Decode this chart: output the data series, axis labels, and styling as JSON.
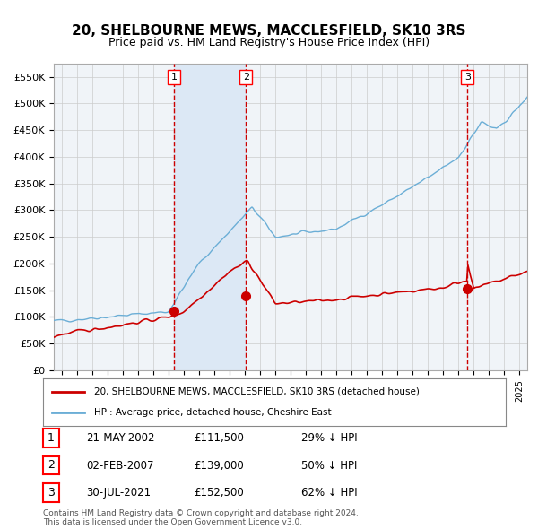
{
  "title": "20, SHELBOURNE MEWS, MACCLESFIELD, SK10 3RS",
  "subtitle": "Price paid vs. HM Land Registry's House Price Index (HPI)",
  "xlabel": "",
  "ylabel": "",
  "ylim": [
    0,
    575000
  ],
  "yticks": [
    0,
    50000,
    100000,
    150000,
    200000,
    250000,
    300000,
    350000,
    400000,
    450000,
    500000,
    550000
  ],
  "ytick_labels": [
    "£0",
    "£50K",
    "£100K",
    "£150K",
    "£200K",
    "£250K",
    "£300K",
    "£350K",
    "£400K",
    "£450K",
    "£500K",
    "£550K"
  ],
  "hpi_color": "#6baed6",
  "price_color": "#cc0000",
  "sale_dot_color": "#cc0000",
  "vline_color": "#cc0000",
  "grid_color": "#cccccc",
  "bg_color": "#ffffff",
  "plot_bg_color": "#f0f4f8",
  "shade_color": "#dce8f5",
  "legend_box_color": "#ffffff",
  "legend_border_color": "#888888",
  "transactions": [
    {
      "label": "1",
      "date_x": 2002.38,
      "price": 111500,
      "date_str": "21-MAY-2002",
      "price_str": "£111,500",
      "pct_str": "29% ↓ HPI"
    },
    {
      "label": "2",
      "date_x": 2007.08,
      "price": 139000,
      "date_str": "02-FEB-2007",
      "price_str": "£139,000",
      "pct_str": "50% ↓ HPI"
    },
    {
      "label": "3",
      "date_x": 2021.58,
      "price": 152500,
      "date_str": "30-JUL-2021",
      "price_str": "£152,500",
      "pct_str": "62% ↓ HPI"
    }
  ],
  "footnote1": "Contains HM Land Registry data © Crown copyright and database right 2024.",
  "footnote2": "This data is licensed under the Open Government Licence v3.0.",
  "legend1": "20, SHELBOURNE MEWS, MACCLESFIELD, SK10 3RS (detached house)",
  "legend2": "HPI: Average price, detached house, Cheshire East",
  "xmin": 1994.5,
  "xmax": 2025.5
}
